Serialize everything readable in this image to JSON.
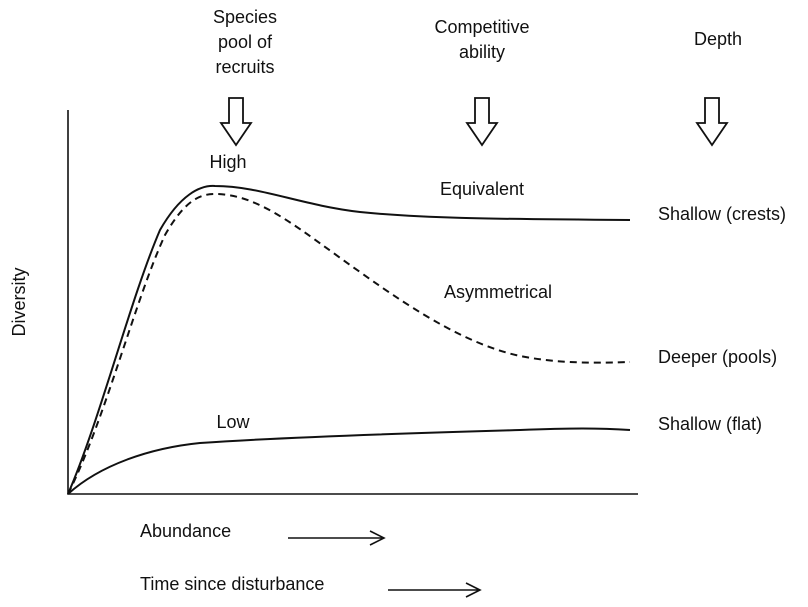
{
  "columns": [
    {
      "lines": [
        "Species",
        "pool of",
        "recruits"
      ]
    },
    {
      "lines": [
        "Competitive",
        "ability"
      ]
    },
    {
      "lines": [
        "Depth"
      ]
    }
  ],
  "curve_labels": {
    "high": "High",
    "low": "Low",
    "equivalent": "Equivalent",
    "asymmetrical": "Asymmetrical"
  },
  "row_labels": {
    "crests": "Shallow (crests)",
    "pools": "Deeper (pools)",
    "flat": "Shallow (flat)"
  },
  "y_axis_label": "Diversity",
  "x_axis_labels": {
    "abundance": "Abundance",
    "time": "Time since disturbance"
  }
}
